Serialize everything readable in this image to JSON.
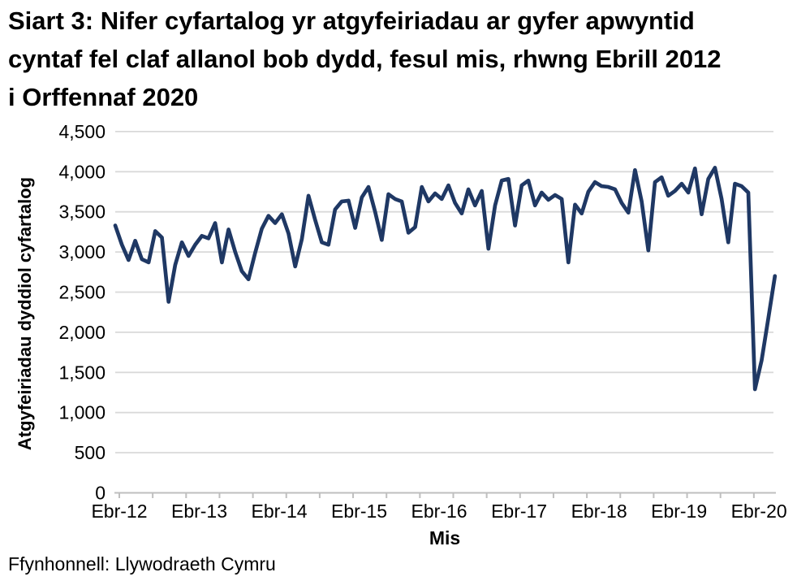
{
  "header": {
    "title": "Siart 3: Nifer cyfartalog yr atgyfeiriadau ar gyfer apwyntid cyntaf fel claf allanol bob dydd, fesul mis, rhwng Ebrill 2012 i Orffennaf 2020"
  },
  "footer": {
    "source": "Ffynhonnell: Llywodraeth Cymru"
  },
  "chart_data": {
    "type": "line",
    "title": "Siart 3: Nifer cyfartalog yr atgyfeiriadau ar gyfer apwyntid cyntaf fel claf allanol bob dydd, fesul mis, rhwng Ebrill 2012 i Orffennaf 2020",
    "xlabel": "Mis",
    "ylabel": "Atgyfeiriadau dyddiol cyfartalog",
    "ylim": [
      0,
      4500
    ],
    "ytick_step": 500,
    "ytick_labels": [
      "0",
      "500",
      "1,000",
      "1,500",
      "2,000",
      "2,500",
      "3,000",
      "3,500",
      "4,000",
      "4,500"
    ],
    "xtick_labels": [
      "Ebr-12",
      "Ebr-13",
      "Ebr-14",
      "Ebr-15",
      "Ebr-16",
      "Ebr-17",
      "Ebr-18",
      "Ebr-19",
      "Ebr-20"
    ],
    "xtick_label_interval_months": 12,
    "x_start_label": "Ebr-12",
    "x_months_span": 100,
    "grid": "horizontal",
    "legend": "none",
    "line_color": "#1f3864",
    "gridline_color": "#d9d9d9",
    "axis_color": "#bfbfbf",
    "text_color": "#000000",
    "values": [
      3330,
      3090,
      2900,
      3140,
      2910,
      2870,
      3260,
      3180,
      2380,
      2840,
      3120,
      2950,
      3090,
      3200,
      3170,
      3360,
      2870,
      3280,
      3000,
      2760,
      2660,
      2990,
      3290,
      3450,
      3360,
      3470,
      3230,
      2820,
      3160,
      3700,
      3400,
      3120,
      3090,
      3530,
      3630,
      3640,
      3300,
      3680,
      3810,
      3500,
      3150,
      3720,
      3660,
      3630,
      3240,
      3310,
      3810,
      3630,
      3730,
      3660,
      3830,
      3610,
      3480,
      3780,
      3580,
      3760,
      3040,
      3580,
      3890,
      3910,
      3330,
      3830,
      3890,
      3580,
      3740,
      3650,
      3710,
      3660,
      2870,
      3590,
      3480,
      3750,
      3870,
      3820,
      3810,
      3780,
      3610,
      3490,
      4020,
      3630,
      3020,
      3870,
      3930,
      3700,
      3760,
      3850,
      3740,
      4040,
      3470,
      3910,
      4050,
      3660,
      3120,
      3850,
      3820,
      3740,
      1290,
      1650,
      2170,
      2700
    ]
  }
}
